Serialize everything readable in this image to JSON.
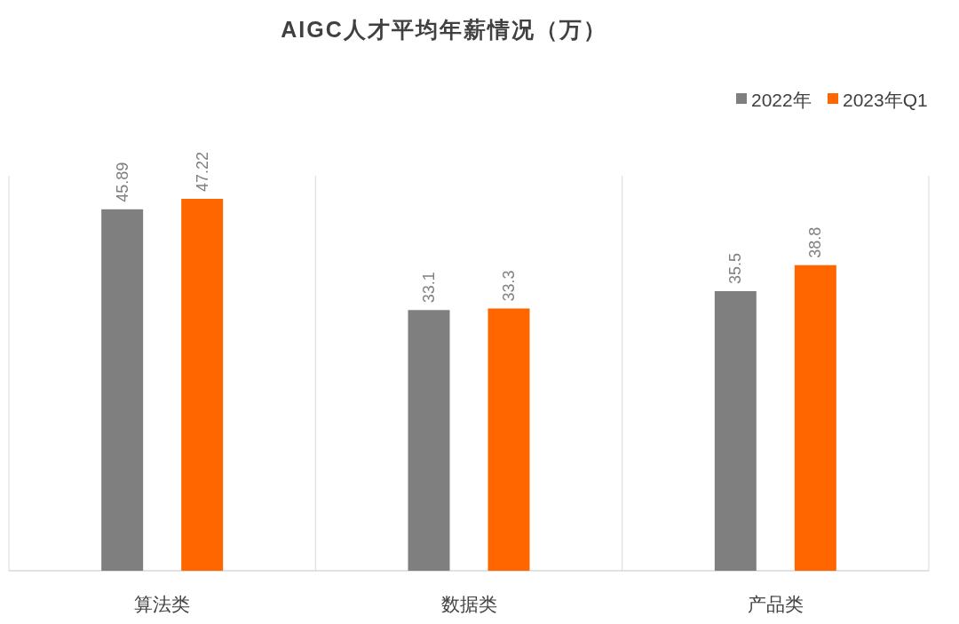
{
  "chart_data": {
    "type": "bar",
    "title": "AIGC人才平均年薪情况（万）",
    "categories": [
      "算法类",
      "数据类",
      "产品类"
    ],
    "series": [
      {
        "name": "2022年",
        "color": "#7f7f7f",
        "values": [
          45.89,
          33.1,
          35.5
        ]
      },
      {
        "name": "2023年Q1",
        "color": "#ff6600",
        "values": [
          47.22,
          33.3,
          38.8
        ]
      }
    ],
    "data_labels": true,
    "grid": "x",
    "legend": "top right"
  }
}
